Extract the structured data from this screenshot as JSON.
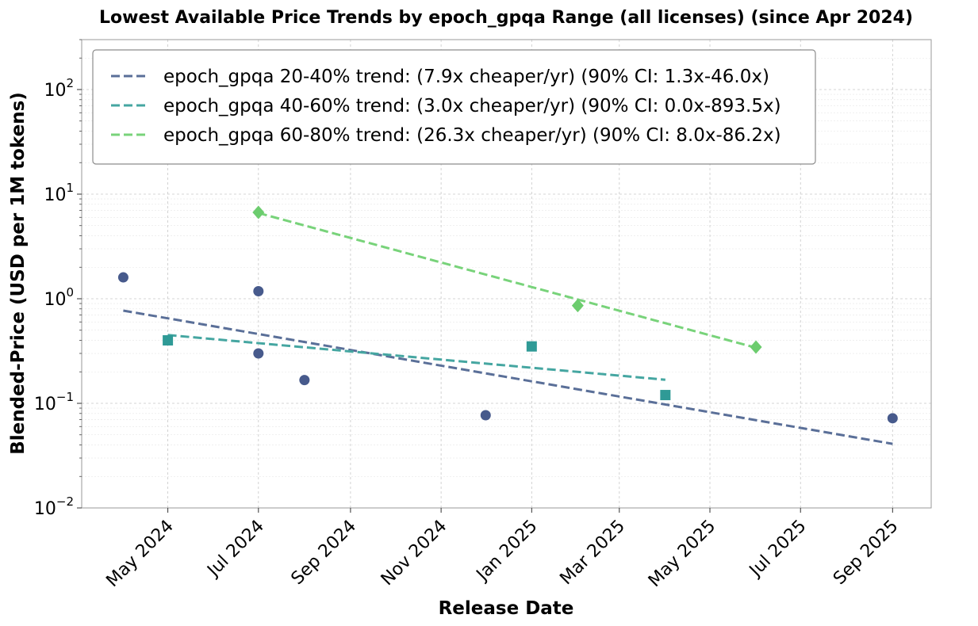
{
  "chart_data": {
    "type": "scatter",
    "title": "Lowest Available Price Trends by epoch_gpqa Range (all licenses) (since Apr 2024)",
    "xlabel": "Release Date",
    "ylabel": "Blended-Price (USD per 1M tokens)",
    "yscale": "log",
    "ylim": [
      0.01,
      300
    ],
    "xlim": [
      "2024-03-04",
      "2025-09-27"
    ],
    "grid": true,
    "legend_position": "top-left",
    "x_ticks": [
      {
        "date": "2024-05-01",
        "label": "May 2024"
      },
      {
        "date": "2024-07-01",
        "label": "Jul 2024"
      },
      {
        "date": "2024-09-01",
        "label": "Sep 2024"
      },
      {
        "date": "2024-11-01",
        "label": "Nov 2024"
      },
      {
        "date": "2025-01-01",
        "label": "Jan 2025"
      },
      {
        "date": "2025-03-01",
        "label": "Mar 2025"
      },
      {
        "date": "2025-05-01",
        "label": "May 2025"
      },
      {
        "date": "2025-07-01",
        "label": "Jul 2025"
      },
      {
        "date": "2025-09-01",
        "label": "Sep 2025"
      }
    ],
    "y_ticks": [
      {
        "value": 0.01,
        "exponent": "−2"
      },
      {
        "value": 0.1,
        "exponent": "−1"
      },
      {
        "value": 1,
        "exponent": "0"
      },
      {
        "value": 10,
        "exponent": "1"
      },
      {
        "value": 100,
        "exponent": "2"
      }
    ],
    "y_tick_base": "10",
    "series": [
      {
        "name": "epoch_gpqa 20-40%",
        "legend_label": "epoch_gpqa 20-40% trend: (7.9x cheaper/yr) (90% CI: 1.3x-46.0x)",
        "color": "#475a8c",
        "trend_color": "#5a6f98",
        "marker": "circle",
        "points": [
          {
            "date": "2024-04-01",
            "price": 1.6
          },
          {
            "date": "2024-07-01",
            "price": 1.18
          },
          {
            "date": "2024-07-01",
            "price": 0.3
          },
          {
            "date": "2024-08-01",
            "price": 0.167
          },
          {
            "date": "2024-12-01",
            "price": 0.077
          },
          {
            "date": "2025-09-01",
            "price": 0.072
          }
        ],
        "trend": [
          {
            "date": "2024-04-01",
            "price": 0.77
          },
          {
            "date": "2025-09-01",
            "price": 0.041
          }
        ]
      },
      {
        "name": "epoch_gpqa 40-60%",
        "legend_label": "epoch_gpqa 40-60% trend: (3.0x cheaper/yr) (90% CI: 0.0x-893.5x)",
        "color": "#2f9a96",
        "trend_color": "#45a6a1",
        "marker": "square",
        "points": [
          {
            "date": "2024-05-01",
            "price": 0.4
          },
          {
            "date": "2025-01-01",
            "price": 0.35
          },
          {
            "date": "2025-04-01",
            "price": 0.12
          }
        ],
        "trend": [
          {
            "date": "2024-05-01",
            "price": 0.45
          },
          {
            "date": "2025-04-01",
            "price": 0.168
          }
        ]
      },
      {
        "name": "epoch_gpqa 60-80%",
        "legend_label": "epoch_gpqa 60-80% trend: (26.3x cheaper/yr) (90% CI: 8.0x-86.2x)",
        "color": "#6ccc6e",
        "trend_color": "#78d37a",
        "marker": "diamond",
        "points": [
          {
            "date": "2024-07-01",
            "price": 6.7
          },
          {
            "date": "2025-02-01",
            "price": 0.86
          },
          {
            "date": "2025-06-01",
            "price": 0.345
          }
        ],
        "trend": [
          {
            "date": "2024-07-01",
            "price": 6.6
          },
          {
            "date": "2025-06-01",
            "price": 0.34
          }
        ]
      }
    ]
  }
}
